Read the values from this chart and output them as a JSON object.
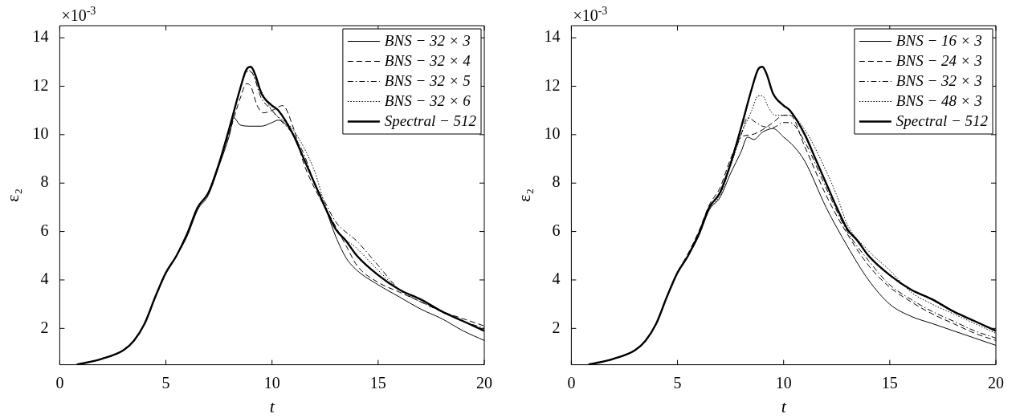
{
  "chart_data": [
    {
      "type": "line",
      "xlabel": "t",
      "ylabel": "ε₂",
      "annotations": [
        "×10$^{-3}$"
      ],
      "xlim": [
        0,
        20
      ],
      "ylim": [
        0.5,
        14.5
      ],
      "xticks": [
        0,
        5,
        10,
        15,
        20
      ],
      "yticks": [
        2,
        4,
        6,
        8,
        10,
        12,
        14
      ],
      "grid": false,
      "legend": "top right",
      "marker": "none",
      "series": [
        {
          "name": "BNS − 32 × 3",
          "color": "#000000",
          "line_style": "solid",
          "x": [
            0.8,
            2,
            3,
            3.5,
            4,
            4.5,
            5,
            5.5,
            6,
            6.5,
            7,
            7.5,
            8,
            8.2,
            8.5,
            9,
            9.5,
            10,
            10.3,
            11,
            11.5,
            12,
            12.5,
            13,
            13.5,
            14,
            15,
            16,
            17,
            18,
            19,
            20
          ],
          "values": [
            0.5,
            0.75,
            1.1,
            1.5,
            2.2,
            3.3,
            4.3,
            5.0,
            5.8,
            6.9,
            7.5,
            8.7,
            10.0,
            10.7,
            10.4,
            10.35,
            10.35,
            10.5,
            10.6,
            10.0,
            9.0,
            8.0,
            7.0,
            5.8,
            4.9,
            4.4,
            3.8,
            3.3,
            2.8,
            2.4,
            1.9,
            1.5
          ]
        },
        {
          "name": "BNS − 32 × 4",
          "color": "#000000",
          "line_style": "dashed",
          "x": [
            0.8,
            2,
            3,
            3.5,
            4,
            4.5,
            5,
            5.5,
            6,
            6.5,
            7,
            7.5,
            8,
            8.5,
            8.8,
            9,
            9.3,
            9.6,
            10,
            10.5,
            11,
            11.5,
            12,
            12.5,
            13,
            13.5,
            14,
            15,
            16,
            17,
            18,
            19,
            20
          ],
          "values": [
            0.5,
            0.75,
            1.1,
            1.5,
            2.2,
            3.3,
            4.3,
            5.0,
            5.9,
            7.0,
            7.6,
            8.8,
            10.1,
            11.5,
            12.1,
            12.0,
            11.2,
            10.9,
            11.0,
            11.2,
            10.3,
            8.8,
            7.8,
            7.0,
            6.2,
            5.4,
            4.6,
            3.9,
            3.5,
            3.1,
            2.7,
            2.4,
            2.1
          ]
        },
        {
          "name": "BNS − 32 × 5",
          "color": "#000000",
          "line_style": "dashdot",
          "x": [
            0.8,
            2,
            3,
            3.5,
            4,
            4.5,
            5,
            5.5,
            6,
            6.5,
            7,
            7.5,
            8,
            8.5,
            8.8,
            9,
            9.5,
            10,
            10.5,
            11,
            11.5,
            12,
            12.5,
            13,
            14,
            15,
            16,
            17,
            18,
            19,
            20
          ],
          "values": [
            0.5,
            0.75,
            1.1,
            1.5,
            2.2,
            3.3,
            4.3,
            5.0,
            5.9,
            7.0,
            7.6,
            8.8,
            10.3,
            11.9,
            12.6,
            12.6,
            11.5,
            11.0,
            10.5,
            10.0,
            9.2,
            8.0,
            7.2,
            6.4,
            5.6,
            4.6,
            3.6,
            3.1,
            2.7,
            2.3,
            2.0
          ]
        },
        {
          "name": "BNS − 32 × 6",
          "color": "#000000",
          "line_style": "dotted",
          "x": [
            0.8,
            2,
            3,
            3.5,
            4,
            4.5,
            5,
            5.5,
            6,
            6.5,
            7,
            7.5,
            8,
            8.5,
            8.8,
            9,
            9.5,
            10,
            11,
            12,
            12.5,
            13,
            14,
            15,
            16,
            17,
            18,
            19,
            20
          ],
          "values": [
            0.5,
            0.75,
            1.1,
            1.5,
            2.2,
            3.3,
            4.3,
            5.0,
            5.9,
            7.0,
            7.6,
            8.8,
            10.3,
            11.9,
            12.7,
            12.6,
            11.8,
            11.0,
            10.2,
            8.5,
            7.1,
            6.1,
            5.3,
            4.4,
            3.6,
            3.2,
            2.7,
            2.3,
            1.9
          ]
        },
        {
          "name": "Spectral − 512",
          "color": "#000000",
          "line_style": "solid",
          "x": [
            0.8,
            2,
            3,
            3.5,
            4,
            4.5,
            5,
            5.5,
            6,
            6.5,
            7,
            7.5,
            8,
            8.5,
            8.8,
            9,
            9.2,
            9.5,
            10,
            10.3,
            11,
            11.5,
            12,
            12.5,
            13,
            13.5,
            14,
            15,
            16,
            17,
            18,
            19,
            20
          ],
          "values": [
            0.5,
            0.75,
            1.1,
            1.5,
            2.2,
            3.3,
            4.3,
            5.0,
            5.9,
            7.0,
            7.6,
            8.8,
            10.3,
            11.9,
            12.7,
            12.8,
            12.5,
            11.7,
            11.2,
            11.0,
            10.0,
            9.0,
            8.0,
            7.0,
            6.1,
            5.6,
            5.0,
            4.2,
            3.6,
            3.2,
            2.7,
            2.3,
            1.9
          ]
        }
      ]
    },
    {
      "type": "line",
      "xlabel": "t",
      "ylabel": "ε₂",
      "annotations": [
        "×10$^{-3}$"
      ],
      "xlim": [
        0,
        20
      ],
      "ylim": [
        0.5,
        14.5
      ],
      "xticks": [
        0,
        5,
        10,
        15,
        20
      ],
      "yticks": [
        2,
        4,
        6,
        8,
        10,
        12,
        14
      ],
      "grid": false,
      "legend": "top right",
      "marker": "none",
      "series": [
        {
          "name": "BNS − 16 × 3",
          "color": "#000000",
          "line_style": "solid",
          "x": [
            0.8,
            2,
            3,
            3.5,
            4,
            4.5,
            5,
            5.5,
            6,
            6.5,
            7,
            7.5,
            8,
            8.3,
            8.6,
            9,
            9.5,
            10,
            10.5,
            11,
            12,
            13,
            14,
            15,
            16,
            17,
            18,
            19,
            20
          ],
          "values": [
            0.5,
            0.75,
            1.1,
            1.5,
            2.2,
            3.3,
            4.3,
            5.0,
            5.8,
            6.9,
            7.4,
            8.4,
            9.3,
            9.9,
            9.8,
            10.1,
            10.25,
            9.9,
            9.5,
            8.9,
            7.0,
            5.4,
            4.0,
            3.0,
            2.5,
            2.2,
            1.9,
            1.6,
            1.3
          ]
        },
        {
          "name": "BNS − 24 × 3",
          "color": "#000000",
          "line_style": "dashed",
          "x": [
            0.8,
            2,
            3,
            3.5,
            4,
            4.5,
            5,
            5.5,
            6,
            6.5,
            7,
            7.5,
            8,
            8.5,
            9,
            9.5,
            10,
            10.3,
            11,
            12,
            13,
            14,
            15,
            16,
            17,
            18,
            19,
            20
          ],
          "values": [
            0.5,
            0.75,
            1.1,
            1.5,
            2.2,
            3.3,
            4.3,
            5.1,
            6.0,
            7.1,
            7.8,
            9.0,
            9.9,
            10.0,
            10.2,
            10.5,
            10.8,
            10.8,
            9.5,
            7.5,
            5.9,
            4.6,
            3.7,
            3.1,
            2.6,
            2.2,
            1.8,
            1.5
          ]
        },
        {
          "name": "BNS − 32 × 3",
          "color": "#000000",
          "line_style": "dashdot",
          "x": [
            0.8,
            2,
            3,
            3.5,
            4,
            4.5,
            5,
            5.5,
            6,
            6.5,
            7,
            7.5,
            8,
            8.3,
            8.7,
            9,
            9.5,
            10,
            10.3,
            11,
            12,
            13,
            14,
            15,
            16,
            17,
            18,
            19,
            20
          ],
          "values": [
            0.5,
            0.75,
            1.1,
            1.5,
            2.2,
            3.3,
            4.3,
            5.0,
            5.9,
            7.0,
            7.6,
            8.8,
            10.0,
            10.7,
            10.5,
            10.35,
            10.3,
            10.5,
            10.5,
            9.7,
            7.8,
            6.0,
            4.8,
            3.8,
            3.2,
            2.7,
            2.3,
            1.9,
            1.6
          ]
        },
        {
          "name": "BNS − 48 × 3",
          "color": "#000000",
          "line_style": "dotted",
          "x": [
            0.8,
            2,
            3,
            3.5,
            4,
            4.5,
            5,
            5.5,
            6,
            6.5,
            7,
            7.5,
            8,
            8.5,
            8.8,
            9,
            9.3,
            9.6,
            10,
            10.3,
            11,
            12,
            12.5,
            13,
            14,
            15,
            16,
            17,
            18,
            19,
            20
          ],
          "values": [
            0.5,
            0.75,
            1.1,
            1.5,
            2.2,
            3.3,
            4.3,
            5.0,
            5.9,
            6.9,
            7.5,
            8.7,
            10.0,
            11.0,
            11.6,
            11.6,
            11.1,
            10.8,
            10.8,
            10.8,
            10.2,
            8.5,
            7.5,
            6.3,
            5.2,
            4.4,
            3.5,
            3.0,
            2.6,
            2.2,
            1.8
          ]
        },
        {
          "name": "Spectral − 512",
          "color": "#000000",
          "line_style": "solid",
          "x": [
            0.8,
            2,
            3,
            3.5,
            4,
            4.5,
            5,
            5.5,
            6,
            6.5,
            7,
            7.5,
            8,
            8.5,
            8.8,
            9,
            9.2,
            9.5,
            10,
            10.3,
            11,
            11.5,
            12,
            12.5,
            13,
            13.5,
            14,
            15,
            16,
            17,
            18,
            19,
            20
          ],
          "values": [
            0.5,
            0.75,
            1.1,
            1.5,
            2.2,
            3.3,
            4.3,
            5.0,
            5.9,
            7.0,
            7.6,
            8.8,
            10.3,
            11.9,
            12.7,
            12.8,
            12.5,
            11.7,
            11.2,
            11.0,
            10.0,
            9.0,
            8.0,
            7.0,
            6.1,
            5.6,
            5.0,
            4.2,
            3.6,
            3.2,
            2.7,
            2.3,
            1.9
          ]
        }
      ]
    }
  ]
}
